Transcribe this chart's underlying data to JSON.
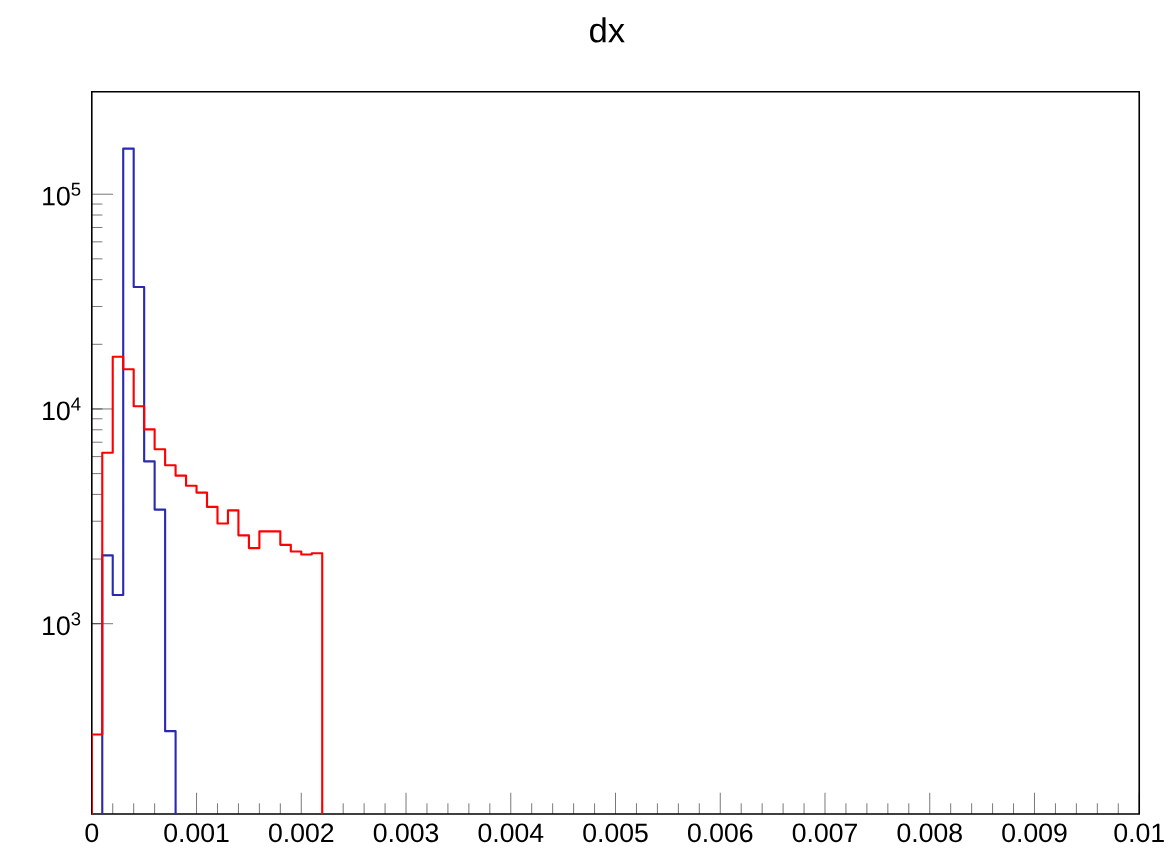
{
  "chart_data": {
    "type": "histogram",
    "title": "dx",
    "bins": [
      0,
      0.0001,
      0.0002,
      0.0003,
      0.0004,
      0.0005,
      0.0006,
      0.0007,
      0.0008,
      0.0009,
      0.001,
      0.0011,
      0.0012,
      0.0013,
      0.0014,
      0.0015,
      0.0016,
      0.0017,
      0.0018,
      0.0019,
      0.002,
      0.0021,
      0.0022
    ],
    "series": [
      {
        "color": "#2a2ab0",
        "bins": [
          0.0001,
          0.0002,
          0.0003,
          0.0004,
          0.0005,
          0.0006,
          0.0007,
          0.0008
        ],
        "values": [
          2080,
          1360,
          163000,
          37000,
          5700,
          3400,
          316
        ]
      },
      {
        "color": "#ff0000",
        "values": [
          305,
          6250,
          17500,
          15300,
          10300,
          8030,
          6490,
          5470,
          4890,
          4390,
          4080,
          3500,
          2930,
          3370,
          2580,
          2250,
          2690,
          2690,
          2330,
          2170,
          2100,
          2130
        ]
      }
    ],
    "log": "y",
    "grid": false,
    "xlim": [
      0,
      0.01
    ],
    "ylim": [
      130,
      300000
    ],
    "xticks": [
      0,
      0.001,
      0.002,
      0.003,
      0.004,
      0.005,
      0.006,
      0.007,
      0.008,
      0.009,
      0.01
    ],
    "yticks": [
      {
        "value": 1000,
        "label": "10$^{3}$"
      },
      {
        "value": 10000,
        "label": "10$^{4}$"
      },
      {
        "value": 100000,
        "label": "10$^{5}$"
      }
    ]
  }
}
